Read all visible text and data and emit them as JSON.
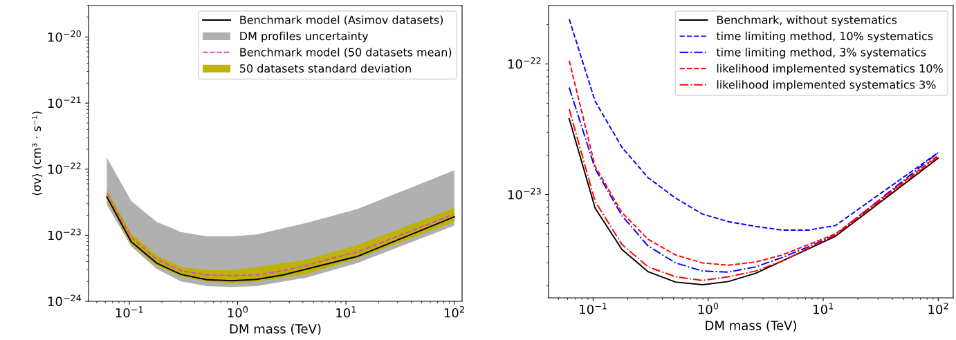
{
  "chart_data": [
    {
      "type": "line",
      "xlabel": "DM mass (TeV)",
      "ylabel": "⟨σv⟩ (cm³ · s⁻¹)",
      "log": "xy",
      "x": [
        0.062,
        0.104,
        0.178,
        0.3,
        0.52,
        0.89,
        1.5,
        2.6,
        4.4,
        7.5,
        12.8,
        100
      ],
      "xlim": [
        0.042,
        118
      ],
      "ylim": [
        1e-24,
        3e-20
      ],
      "xticks": [
        {
          "value": 0.1,
          "label": "10$^{−1}$"
        },
        {
          "value": 1,
          "label": "10$^{0}$"
        },
        {
          "value": 10,
          "label": "10$^{1}$"
        },
        {
          "value": 100,
          "label": "10$^{2}$"
        }
      ],
      "yticks": [
        {
          "value": 1e-24,
          "label": "10$^{−24}$"
        },
        {
          "value": 1e-23,
          "label": "10$^{−23}$"
        },
        {
          "value": 1e-22,
          "label": "10$^{−22}$"
        },
        {
          "value": 1e-21,
          "label": "10$^{−21}$"
        },
        {
          "value": 1e-20,
          "label": "10$^{−20}$"
        }
      ],
      "legend": "top right",
      "grid": false,
      "series": [
        {
          "name": "Benchmark model (Asimov datasets)",
          "type": "line",
          "color": "#000000",
          "line_style": "solid",
          "values": [
            3.8e-23,
            8e-24,
            3.8e-24,
            2.55e-24,
            2.12e-24,
            2.05e-24,
            2.15e-24,
            2.5e-24,
            3.1e-24,
            3.85e-24,
            4.8e-24,
            1.9e-23
          ]
        },
        {
          "name": "DM profiles uncertainty",
          "type": "area",
          "color": "#b0b0b0",
          "x": [
            0.062,
            0.104,
            0.178,
            0.3,
            0.52,
            0.89,
            1.5,
            4.4,
            12.8,
            100
          ],
          "values": [
            null,
            null,
            null,
            null,
            null,
            null,
            null,
            null,
            null,
            null
          ],
          "lower": [
            2.9e-23,
            6.8e-24,
            3.1e-24,
            2e-24,
            1.7e-24,
            1.65e-24,
            1.7e-24,
            2.3e-24,
            3.8e-24,
            1.4e-23
          ],
          "upper": [
            1.5e-22,
            3.3e-23,
            1.6e-23,
            1.12e-23,
            9.6e-24,
            9.6e-24,
            1.03e-23,
            1.55e-23,
            2.5e-23,
            9.6e-23
          ]
        },
        {
          "name": "Benchmark model (50 datasets mean)",
          "type": "line",
          "color": "#e040e0",
          "line_style": "dashed",
          "values": [
            4.3e-23,
            9.3e-24,
            4.35e-24,
            2.9e-24,
            2.5e-24,
            2.45e-24,
            2.5e-24,
            2.9e-24,
            3.5e-24,
            4.5e-24,
            5.6e-24,
            2.1e-23
          ]
        },
        {
          "name": "50 datasets standard deviation",
          "type": "area",
          "color": "#bcb400",
          "x": [
            0.062,
            0.104,
            0.178,
            0.3,
            0.52,
            0.89,
            1.5,
            4.4,
            12.8,
            100
          ],
          "values": [
            null,
            null,
            null,
            null,
            null,
            null,
            null,
            null,
            null,
            null
          ],
          "lower": [
            3.4e-23,
            7.4e-24,
            3.5e-24,
            2.4e-24,
            2e-24,
            1.87e-24,
            2e-24,
            2.6e-24,
            4.5e-24,
            1.6e-23
          ],
          "upper": [
            4.9e-23,
            1.07e-23,
            5e-24,
            3.3e-24,
            3e-24,
            3e-24,
            3.3e-24,
            4.3e-24,
            7.1e-24,
            2.6e-23
          ]
        }
      ]
    },
    {
      "type": "line",
      "xlabel": "DM mass (TeV)",
      "log": "xy",
      "x": [
        0.062,
        0.104,
        0.178,
        0.3,
        0.52,
        0.89,
        1.5,
        2.6,
        4.4,
        7.5,
        12.8,
        100
      ],
      "xlim": [
        0.041,
        135
      ],
      "ylim": [
        1.62e-24,
        2.8e-22
      ],
      "xticks": [
        {
          "value": 0.1,
          "label": "10$^{−1}$"
        },
        {
          "value": 1,
          "label": "10$^{0}$"
        },
        {
          "value": 10,
          "label": "10$^{1}$"
        },
        {
          "value": 100,
          "label": "10$^{2}$"
        }
      ],
      "yticks": [
        {
          "value": 1e-23,
          "label": "10$^{−23}$"
        },
        {
          "value": 1e-22,
          "label": "10$^{−22}$"
        }
      ],
      "legend": "top right",
      "grid": false,
      "series": [
        {
          "name": "Benchmark, without systematics",
          "color": "#000000",
          "line_style": "solid",
          "values": [
            3.8e-23,
            7.9e-24,
            3.8e-24,
            2.57e-24,
            2.14e-24,
            2.04e-24,
            2.16e-24,
            2.5e-24,
            3.1e-24,
            3.85e-24,
            4.8e-24,
            1.9e-23
          ]
        },
        {
          "name": "time limiting method, 10% systematics",
          "color": "#0000ff",
          "line_style": "dashed",
          "values": [
            2.2e-22,
            5.2e-23,
            2.3e-23,
            1.35e-23,
            9.4e-24,
            7.1e-24,
            6.2e-24,
            5.7e-24,
            5.35e-24,
            5.35e-24,
            5.8e-24,
            2.1e-23
          ]
        },
        {
          "name": "time limiting method, 3% systematics",
          "color": "#0000ff",
          "line_style": "dashdot",
          "values": [
            6.6e-23,
            1.58e-23,
            6.9e-24,
            4.05e-24,
            3e-24,
            2.6e-24,
            2.55e-24,
            2.8e-24,
            3.3e-24,
            4e-24,
            4.9e-24,
            2.1e-23
          ]
        },
        {
          "name": "likelihood implemented systematics 10%",
          "color": "#ff0000",
          "line_style": "dashed",
          "values": [
            1.06e-22,
            1.65e-23,
            7.3e-24,
            4.55e-24,
            3.45e-24,
            3e-24,
            2.88e-24,
            3.05e-24,
            3.45e-24,
            4.15e-24,
            5e-24,
            2e-23
          ]
        },
        {
          "name": "likelihood implemented systematics 3%",
          "color": "#ff0000",
          "line_style": "dashdot",
          "values": [
            4.5e-23,
            8.9e-24,
            4.15e-24,
            2.8e-24,
            2.35e-24,
            2.2e-24,
            2.35e-24,
            2.6e-24,
            3.1e-24,
            3.9e-24,
            4.9e-24,
            1.95e-23
          ]
        }
      ]
    }
  ]
}
